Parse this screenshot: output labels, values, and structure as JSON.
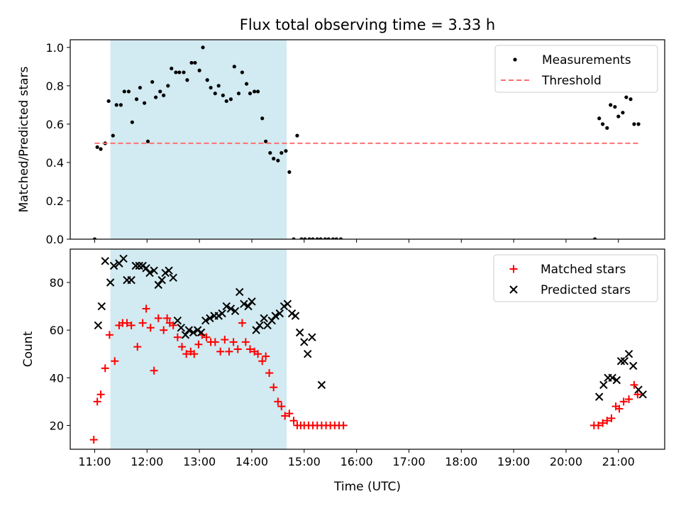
{
  "title": "Flux total observing time = 3.33 h",
  "colors": {
    "measurements": "#000000",
    "threshold": "#ff7070",
    "matched": "#ff0000",
    "predicted": "#000000",
    "highlight": "#add8e6"
  },
  "chart_data": [
    {
      "type": "scatter",
      "ylabel": "Matched/Predicted stars",
      "ylim": [
        0.0,
        1.04
      ],
      "xlim": [
        "10:32",
        "21:53"
      ],
      "yticks": [
        "0.0",
        "0.2",
        "0.4",
        "0.6",
        "0.8",
        "1.0"
      ],
      "yticks_values": [
        0.0,
        0.2,
        0.4,
        0.6,
        0.8,
        1.0
      ],
      "highlight_band": [
        "11:18",
        "14:40"
      ],
      "legend": {
        "placement": "top-right",
        "entries": [
          "Measurements",
          "Threshold"
        ]
      },
      "series": [
        {
          "name": "Measurements",
          "marker": "dot",
          "x": [
            "11:00",
            "11:03",
            "11:07",
            "11:12",
            "11:16",
            "11:21",
            "11:25",
            "11:30",
            "11:34",
            "11:39",
            "11:43",
            "11:48",
            "11:52",
            "11:57",
            "12:01",
            "12:06",
            "12:10",
            "12:15",
            "12:19",
            "12:24",
            "12:28",
            "12:33",
            "12:37",
            "12:42",
            "12:46",
            "12:51",
            "12:55",
            "13:00",
            "13:04",
            "13:09",
            "13:13",
            "13:18",
            "13:22",
            "13:27",
            "13:31",
            "13:36",
            "13:40",
            "13:45",
            "13:49",
            "13:54",
            "13:58",
            "14:03",
            "14:07",
            "14:12",
            "14:16",
            "14:21",
            "14:25",
            "14:30",
            "14:34",
            "14:39",
            "14:43",
            "14:48",
            "14:52",
            "14:57",
            "15:01",
            "15:06",
            "15:10",
            "15:15",
            "15:19",
            "15:24",
            "15:28",
            "15:33",
            "15:37",
            "15:42",
            "20:33",
            "20:38",
            "20:42",
            "20:47",
            "20:51",
            "20:56",
            "21:00",
            "21:05",
            "21:09",
            "21:14",
            "21:18",
            "21:23"
          ],
          "y": [
            0.0,
            0.48,
            0.47,
            0.5,
            0.72,
            0.54,
            0.7,
            0.7,
            0.77,
            0.77,
            0.61,
            0.73,
            0.79,
            0.71,
            0.51,
            0.82,
            0.74,
            0.77,
            0.75,
            0.8,
            0.89,
            0.87,
            0.87,
            0.87,
            0.83,
            0.92,
            0.92,
            0.88,
            1.0,
            0.83,
            0.79,
            0.76,
            0.8,
            0.75,
            0.72,
            0.73,
            0.9,
            0.76,
            0.87,
            0.81,
            0.76,
            0.77,
            0.77,
            0.63,
            0.51,
            0.45,
            0.42,
            0.41,
            0.45,
            0.46,
            0.35,
            0.0,
            0.54,
            0.0,
            0.0,
            0.0,
            0.0,
            0.0,
            0.0,
            0.0,
            0.0,
            0.0,
            0.0,
            0.0,
            0.0,
            0.63,
            0.6,
            0.58,
            0.7,
            0.69,
            0.64,
            0.66,
            0.74,
            0.73,
            0.6,
            0.6
          ]
        },
        {
          "name": "Threshold",
          "marker": "dashed-line",
          "x": [
            "11:00",
            "21:23"
          ],
          "y": [
            0.5,
            0.5
          ]
        }
      ]
    },
    {
      "type": "scatter",
      "ylabel": "Count",
      "xlabel": "Time (UTC)",
      "ylim": [
        10,
        94
      ],
      "xlim": [
        "10:32",
        "21:53"
      ],
      "yticks": [
        "20",
        "40",
        "60",
        "80"
      ],
      "yticks_values": [
        20,
        40,
        60,
        80
      ],
      "xticks": [
        "11:00",
        "12:00",
        "13:00",
        "14:00",
        "15:00",
        "16:00",
        "17:00",
        "18:00",
        "19:00",
        "20:00",
        "21:00"
      ],
      "highlight_band": [
        "11:18",
        "14:40"
      ],
      "legend": {
        "placement": "top-right",
        "entries": [
          "Matched stars",
          "Predicted stars"
        ]
      },
      "series": [
        {
          "name": "Matched stars",
          "marker": "plus",
          "x": [
            "10:59",
            "11:03",
            "11:07",
            "11:12",
            "11:17",
            "11:23",
            "11:28",
            "11:32",
            "11:37",
            "11:42",
            "11:49",
            "11:55",
            "11:59",
            "12:04",
            "12:08",
            "12:13",
            "12:19",
            "12:23",
            "12:26",
            "12:30",
            "12:35",
            "12:40",
            "12:45",
            "12:50",
            "12:54",
            "12:59",
            "13:03",
            "13:08",
            "13:13",
            "13:18",
            "13:24",
            "13:29",
            "13:34",
            "13:39",
            "13:44",
            "13:49",
            "13:53",
            "13:58",
            "14:03",
            "14:07",
            "14:12",
            "14:16",
            "14:20",
            "14:25",
            "14:30",
            "14:34",
            "14:38",
            "14:43",
            "14:48",
            "14:52",
            "14:56",
            "15:00",
            "15:05",
            "15:10",
            "15:15",
            "15:20",
            "15:25",
            "15:30",
            "15:35",
            "15:40",
            "15:45",
            "20:32",
            "20:37",
            "20:42",
            "20:47",
            "20:52",
            "20:57",
            "21:01",
            "21:06",
            "21:12",
            "21:18",
            "21:22"
          ],
          "y": [
            14,
            30,
            33,
            44,
            58,
            47,
            62,
            63,
            63,
            62,
            53,
            63,
            69,
            61,
            43,
            65,
            60,
            65,
            63,
            62,
            57,
            53,
            50,
            51,
            50,
            54,
            58,
            57,
            55,
            55,
            51,
            56,
            51,
            55,
            52,
            63,
            55,
            52,
            51,
            50,
            47,
            49,
            42,
            36,
            30,
            28,
            24,
            25,
            22,
            20,
            20,
            20,
            20,
            20,
            20,
            20,
            20,
            20,
            20,
            20,
            20,
            20,
            20,
            21,
            22,
            23,
            28,
            27,
            30,
            31,
            37,
            33
          ]
        },
        {
          "name": "Predicted stars",
          "marker": "x",
          "x": [
            "11:04",
            "11:08",
            "11:12",
            "11:18",
            "11:22",
            "11:28",
            "11:33",
            "11:37",
            "11:42",
            "11:47",
            "11:51",
            "11:55",
            "11:59",
            "12:03",
            "12:08",
            "12:13",
            "12:17",
            "12:21",
            "12:25",
            "12:30",
            "12:35",
            "12:39",
            "12:44",
            "12:48",
            "12:53",
            "12:58",
            "13:02",
            "13:07",
            "13:12",
            "13:17",
            "13:22",
            "13:26",
            "13:31",
            "13:36",
            "13:41",
            "13:46",
            "13:51",
            "13:56",
            "14:00",
            "14:05",
            "14:09",
            "14:14",
            "14:18",
            "14:23",
            "14:27",
            "14:32",
            "14:37",
            "14:41",
            "14:46",
            "14:50",
            "14:55",
            "15:00",
            "15:04",
            "15:09",
            "15:20",
            "20:38",
            "20:43",
            "20:48",
            "20:53",
            "20:58",
            "21:03",
            "21:07",
            "21:12",
            "21:17",
            "21:23",
            "21:28"
          ],
          "y": [
            62,
            70,
            89,
            80,
            87,
            88,
            90,
            81,
            81,
            87,
            87,
            87,
            86,
            84,
            85,
            79,
            81,
            84,
            85,
            82,
            64,
            61,
            58,
            60,
            59,
            60,
            59,
            64,
            65,
            66,
            66,
            67,
            70,
            69,
            68,
            76,
            71,
            70,
            72,
            60,
            62,
            65,
            62,
            64,
            66,
            67,
            70,
            71,
            67,
            66,
            59,
            55,
            50,
            57,
            37,
            32,
            37,
            40,
            40,
            39,
            47,
            47,
            50,
            45,
            35,
            33
          ]
        }
      ]
    }
  ]
}
